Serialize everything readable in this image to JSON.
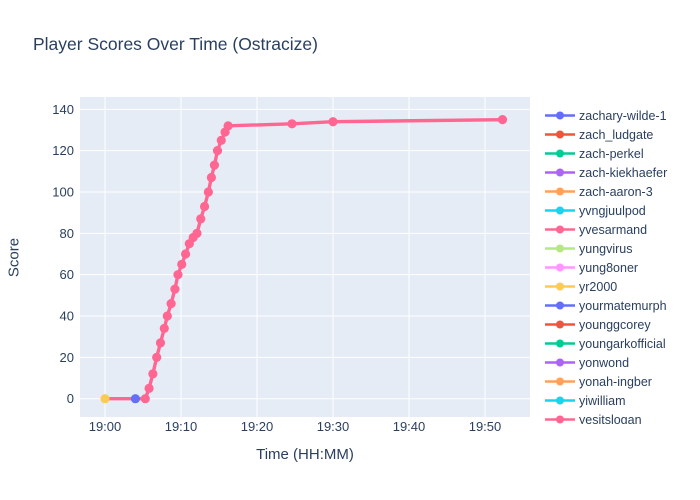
{
  "page": {
    "background_color": "#ffffff",
    "text_color": "#2a3f5f"
  },
  "chart_data": {
    "type": "line",
    "title": "Player Scores Over Time (Ostracize)",
    "xlabel": "Time (HH:MM)",
    "ylabel": "Score",
    "font_color": "#2a3f5f",
    "plot_bgcolor": "#e5ecf6",
    "grid_color": "#ffffff",
    "grid": true,
    "legend_position": "right",
    "x_axis": {
      "unit": "minutes after 19:00",
      "tick_minutes": [
        0,
        10,
        20,
        30,
        40,
        50
      ],
      "tick_labels": [
        "19:00",
        "19:10",
        "19:20",
        "19:30",
        "19:40",
        "19:50"
      ],
      "range_minutes": [
        -3.3,
        55.9
      ]
    },
    "y_axis": {
      "ticks": [
        0,
        20,
        40,
        60,
        80,
        100,
        120,
        140
      ],
      "range": [
        -9,
        147
      ]
    },
    "series": [
      {
        "name": "zachary-wilde-1",
        "color": "#636efa",
        "line_points": [],
        "marker_points": [
          [
            4,
            0
          ]
        ]
      },
      {
        "name": "zach_ludgate",
        "color": "#ef553b",
        "line_points": [],
        "marker_points": []
      },
      {
        "name": "zach-perkel",
        "color": "#00cc96",
        "line_points": [],
        "marker_points": []
      },
      {
        "name": "zach-kiekhaefer",
        "color": "#ab63fa",
        "line_points": [],
        "marker_points": []
      },
      {
        "name": "zach-aaron-3",
        "color": "#ffa15a",
        "line_points": [],
        "marker_points": []
      },
      {
        "name": "yvngjuulpod",
        "color": "#19d3f3",
        "line_points": [],
        "marker_points": []
      },
      {
        "name": "yvesarmand",
        "color": "#ff6692",
        "line_points": [
          [
            0,
            0
          ],
          [
            4,
            0
          ],
          [
            5.3,
            0
          ],
          [
            5.8,
            5
          ],
          [
            6.3,
            12
          ],
          [
            6.8,
            20
          ],
          [
            7.3,
            27
          ],
          [
            7.8,
            34
          ],
          [
            8.2,
            40
          ],
          [
            8.7,
            46
          ],
          [
            9.2,
            53
          ],
          [
            9.6,
            60
          ],
          [
            10.1,
            65
          ],
          [
            10.6,
            70
          ],
          [
            11.1,
            75
          ],
          [
            11.6,
            78
          ],
          [
            12.1,
            80
          ],
          [
            12.6,
            87
          ],
          [
            13.1,
            93
          ],
          [
            13.6,
            100
          ],
          [
            14,
            107
          ],
          [
            14.4,
            113
          ],
          [
            14.8,
            120
          ],
          [
            15.3,
            125
          ],
          [
            15.8,
            129
          ],
          [
            16.2,
            132
          ],
          [
            24.6,
            133
          ],
          [
            30,
            134
          ],
          [
            52.3,
            135
          ]
        ],
        "marker_points": [
          [
            5.3,
            0
          ],
          [
            5.8,
            5
          ],
          [
            6.3,
            12
          ],
          [
            6.8,
            20
          ],
          [
            7.3,
            27
          ],
          [
            7.8,
            34
          ],
          [
            8.2,
            40
          ],
          [
            8.7,
            46
          ],
          [
            9.2,
            53
          ],
          [
            9.6,
            60
          ],
          [
            10.1,
            65
          ],
          [
            10.6,
            70
          ],
          [
            11.1,
            75
          ],
          [
            11.6,
            78
          ],
          [
            12.1,
            80
          ],
          [
            12.6,
            87
          ],
          [
            13.1,
            93
          ],
          [
            13.6,
            100
          ],
          [
            14,
            107
          ],
          [
            14.4,
            113
          ],
          [
            14.8,
            120
          ],
          [
            15.3,
            125
          ],
          [
            15.8,
            129
          ],
          [
            16.2,
            132
          ],
          [
            24.6,
            133
          ],
          [
            30,
            134
          ],
          [
            52.3,
            135
          ]
        ]
      },
      {
        "name": "yungvirus",
        "color": "#b6e880",
        "line_points": [],
        "marker_points": []
      },
      {
        "name": "yung8oner",
        "color": "#ff97ff",
        "line_points": [],
        "marker_points": []
      },
      {
        "name": "yr2000",
        "color": "#fecb52",
        "line_points": [],
        "marker_points": [
          [
            0,
            0
          ]
        ]
      },
      {
        "name": "yourmatemurph",
        "color": "#636efa",
        "line_points": [],
        "marker_points": []
      },
      {
        "name": "younggcorey",
        "color": "#ef553b",
        "line_points": [],
        "marker_points": []
      },
      {
        "name": "youngarkofficial",
        "color": "#00cc96",
        "line_points": [],
        "marker_points": []
      },
      {
        "name": "yonwond",
        "color": "#ab63fa",
        "line_points": [],
        "marker_points": []
      },
      {
        "name": "yonah-ingber",
        "color": "#ffa15a",
        "line_points": [],
        "marker_points": []
      },
      {
        "name": "yiwilliam",
        "color": "#19d3f3",
        "line_points": [],
        "marker_points": []
      },
      {
        "name": "yesitslogan",
        "color": "#ff6692",
        "line_points": [],
        "marker_points": []
      }
    ]
  }
}
